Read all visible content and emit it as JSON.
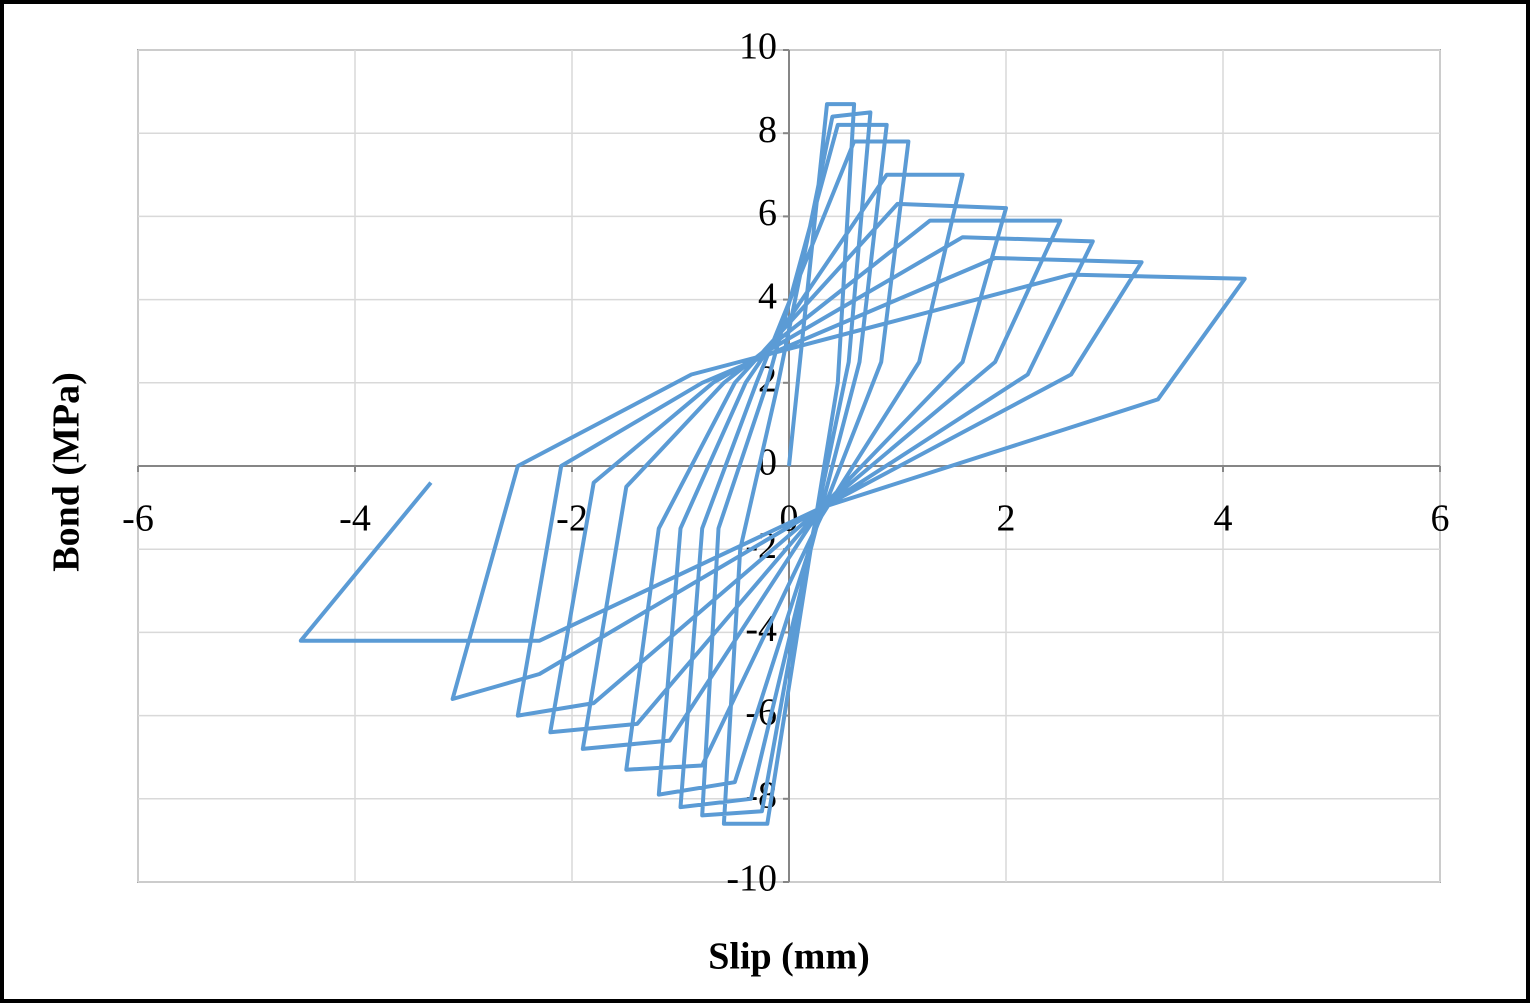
{
  "chart_data": {
    "type": "line",
    "x_label": "Slip (mm)",
    "y_label": "Bond (MPa)",
    "x": [
      0,
      0.35,
      0.6,
      0.45,
      0.2,
      -0.2,
      -0.6,
      -0.45,
      -0.1,
      0.4,
      0.75,
      0.55,
      0.15,
      -0.25,
      -0.8,
      -0.65,
      -0.2,
      0.45,
      0.9,
      0.65,
      0.2,
      -0.35,
      -1.0,
      -0.8,
      -0.3,
      0.6,
      1.1,
      0.85,
      0.25,
      -0.5,
      -1.2,
      -1.0,
      -0.4,
      0.9,
      1.6,
      1.2,
      0.3,
      -0.8,
      -1.5,
      -1.2,
      -0.5,
      1.0,
      2.0,
      1.6,
      0.3,
      -1.1,
      -1.9,
      -1.5,
      -0.6,
      1.3,
      2.5,
      1.9,
      0.3,
      -1.4,
      -2.2,
      -1.8,
      -0.7,
      1.6,
      2.8,
      2.2,
      0.3,
      -1.8,
      -2.5,
      -2.1,
      -0.8,
      1.9,
      3.25,
      2.6,
      0.3,
      -2.3,
      -3.1,
      -2.5,
      -0.9,
      2.6,
      4.2,
      3.4,
      0.3,
      -2.3,
      -4.5,
      -3.3
    ],
    "values": [
      0,
      8.7,
      8.7,
      2,
      -2,
      -8.6,
      -8.6,
      -2,
      2,
      8.4,
      8.5,
      2.5,
      -2.5,
      -8.3,
      -8.4,
      -1.5,
      2,
      8.2,
      8.2,
      2.5,
      -2,
      -8.0,
      -8.2,
      -1.5,
      2,
      7.8,
      7.8,
      2.5,
      -1.5,
      -7.6,
      -7.9,
      -1.5,
      2,
      7.0,
      7.0,
      2.5,
      -1.2,
      -7.2,
      -7.3,
      -1.5,
      2,
      6.3,
      6.2,
      2.5,
      -1,
      -6.6,
      -6.8,
      -0.5,
      2,
      5.9,
      5.9,
      2.5,
      -1,
      -6.2,
      -6.4,
      -0.4,
      2,
      5.5,
      5.4,
      2.2,
      -1,
      -5.7,
      -6.0,
      0,
      2,
      5.0,
      4.9,
      2.2,
      -1,
      -5.0,
      -5.6,
      0,
      2.2,
      4.6,
      4.5,
      1.6,
      -1,
      -4.2,
      -4.2,
      -0.4
    ],
    "color": "#5b9bd5",
    "xlim": [
      -6,
      6
    ],
    "xticks": [
      -6,
      -4,
      -2,
      0,
      2,
      4,
      6
    ],
    "ylim": [
      -10,
      10
    ],
    "yticks": [
      -10,
      -8,
      -6,
      -4,
      -2,
      0,
      2,
      4,
      6,
      8,
      10
    ],
    "grid": true
  }
}
